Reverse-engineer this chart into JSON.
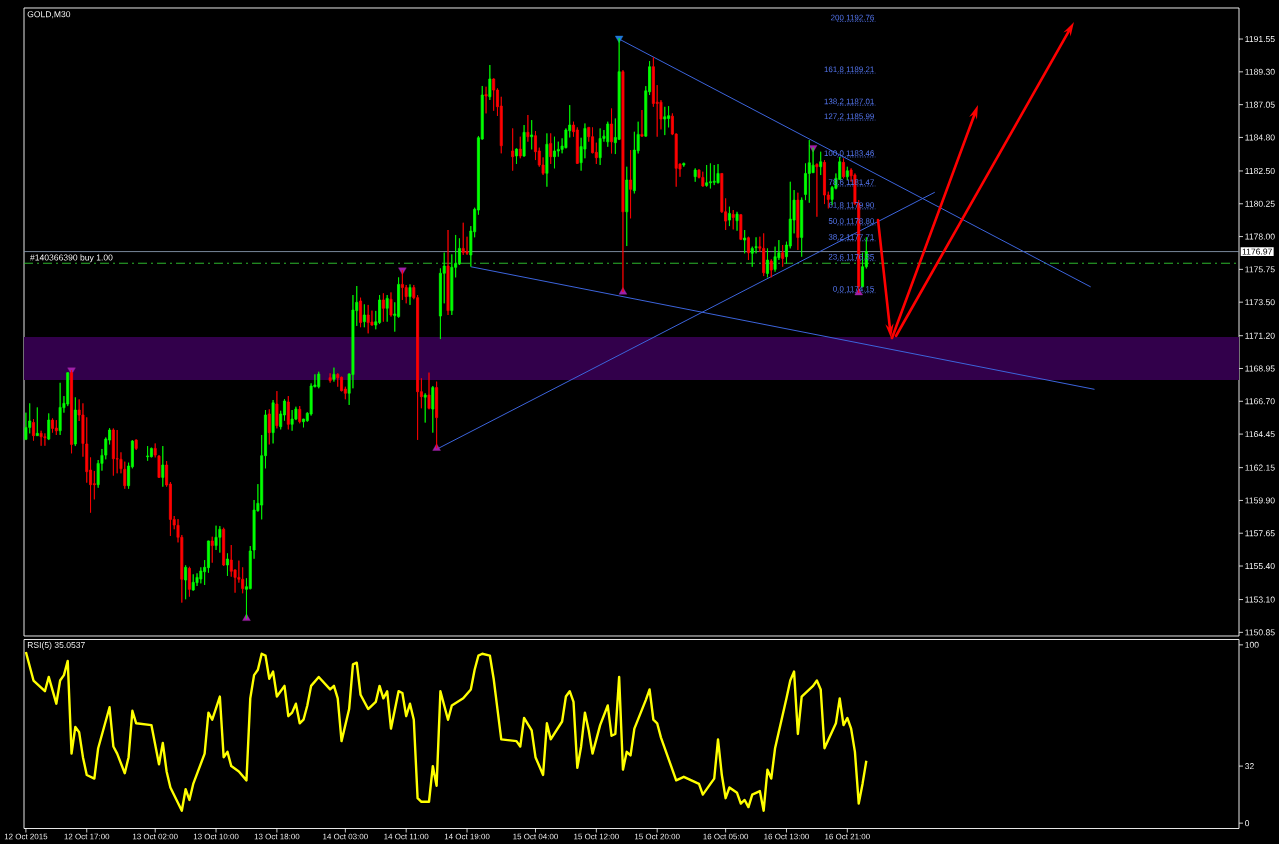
{
  "chart_data": [
    {
      "type": "candlestick",
      "title": "GOLD,M30",
      "x": [
        "2015-10-12T09:00",
        "2015-10-12T09:30",
        "2015-10-12T10:00",
        "2015-10-12T10:30",
        "2015-10-12T11:00",
        "2015-10-12T11:30",
        "2015-10-12T12:00",
        "2015-10-12T12:30",
        "2015-10-12T13:00",
        "2015-10-12T13:30",
        "2015-10-12T14:00",
        "2015-10-12T14:30",
        "2015-10-12T15:00",
        "2015-10-12T15:30",
        "2015-10-12T16:00",
        "2015-10-12T16:30",
        "2015-10-12T17:00",
        "2015-10-12T17:30",
        "2015-10-12T18:00",
        "2015-10-12T18:30",
        "2015-10-12T19:00",
        "2015-10-12T19:30",
        "2015-10-12T20:00",
        "2015-10-12T20:30",
        "2015-10-12T21:00",
        "2015-10-12T21:30",
        "2015-10-12T22:00",
        "2015-10-12T22:30",
        "2015-10-12T23:00",
        "2015-10-12T23:30",
        "2015-10-13T01:00",
        "2015-10-13T01:30",
        "2015-10-13T02:00",
        "2015-10-13T02:30",
        "2015-10-13T03:00",
        "2015-10-13T03:30",
        "2015-10-13T04:00",
        "2015-10-13T04:30",
        "2015-10-13T05:00",
        "2015-10-13T05:30",
        "2015-10-13T06:00",
        "2015-10-13T06:30",
        "2015-10-13T07:00",
        "2015-10-13T07:30",
        "2015-10-13T08:00",
        "2015-10-13T08:30",
        "2015-10-13T09:00",
        "2015-10-13T09:30",
        "2015-10-13T10:00",
        "2015-10-13T10:30",
        "2015-10-13T11:00",
        "2015-10-13T11:30",
        "2015-10-13T12:00",
        "2015-10-13T12:30",
        "2015-10-13T13:00",
        "2015-10-13T13:30",
        "2015-10-13T14:00",
        "2015-10-13T14:30",
        "2015-10-13T15:00",
        "2015-10-13T15:30",
        "2015-10-13T16:00",
        "2015-10-13T16:30",
        "2015-10-13T17:00",
        "2015-10-13T17:30",
        "2015-10-13T18:00",
        "2015-10-13T18:30",
        "2015-10-13T19:00",
        "2015-10-13T19:30",
        "2015-10-13T20:00",
        "2015-10-13T20:30",
        "2015-10-13T21:00",
        "2015-10-13T21:30",
        "2015-10-13T22:00",
        "2015-10-13T22:30",
        "2015-10-13T23:00",
        "2015-10-13T23:30",
        "2015-10-14T01:00",
        "2015-10-14T01:30",
        "2015-10-14T02:00",
        "2015-10-14T02:30",
        "2015-10-14T03:00",
        "2015-10-14T03:30",
        "2015-10-14T04:00",
        "2015-10-14T04:30",
        "2015-10-14T05:00",
        "2015-10-14T05:30",
        "2015-10-14T06:00",
        "2015-10-14T06:30",
        "2015-10-14T07:00",
        "2015-10-14T07:30",
        "2015-10-14T08:00",
        "2015-10-14T08:30",
        "2015-10-14T09:00",
        "2015-10-14T09:30",
        "2015-10-14T10:00",
        "2015-10-14T10:30",
        "2015-10-14T11:00",
        "2015-10-14T11:30",
        "2015-10-14T12:00",
        "2015-10-14T12:30",
        "2015-10-14T13:00",
        "2015-10-14T13:30",
        "2015-10-14T14:00",
        "2015-10-14T14:30",
        "2015-10-14T15:00",
        "2015-10-14T15:30",
        "2015-10-14T16:00",
        "2015-10-14T16:30",
        "2015-10-14T17:00",
        "2015-10-14T17:30",
        "2015-10-14T18:00",
        "2015-10-14T18:30",
        "2015-10-14T19:00",
        "2015-10-14T19:30",
        "2015-10-14T20:00",
        "2015-10-14T20:30",
        "2015-10-14T21:00",
        "2015-10-14T21:30",
        "2015-10-14T22:00",
        "2015-10-14T22:30",
        "2015-10-14T23:00",
        "2015-10-14T23:30",
        "2015-10-15T01:00",
        "2015-10-15T01:30",
        "2015-10-15T02:00",
        "2015-10-15T02:30",
        "2015-10-15T03:00",
        "2015-10-15T03:30",
        "2015-10-15T04:00",
        "2015-10-15T04:30",
        "2015-10-15T05:00",
        "2015-10-15T05:30",
        "2015-10-15T06:00",
        "2015-10-15T06:30",
        "2015-10-15T07:00",
        "2015-10-15T07:30",
        "2015-10-15T08:00",
        "2015-10-15T08:30",
        "2015-10-15T09:00",
        "2015-10-15T09:30",
        "2015-10-15T10:00",
        "2015-10-15T10:30",
        "2015-10-15T11:00",
        "2015-10-15T11:30",
        "2015-10-15T12:00",
        "2015-10-15T12:30",
        "2015-10-15T13:00",
        "2015-10-15T13:30",
        "2015-10-15T14:00",
        "2015-10-15T14:30",
        "2015-10-15T15:00",
        "2015-10-15T15:30",
        "2015-10-15T16:00",
        "2015-10-15T16:30",
        "2015-10-15T17:00",
        "2015-10-15T17:30",
        "2015-10-15T18:00",
        "2015-10-15T18:30",
        "2015-10-15T19:00",
        "2015-10-15T19:30",
        "2015-10-15T20:00",
        "2015-10-15T20:30",
        "2015-10-15T21:00",
        "2015-10-15T21:30",
        "2015-10-15T22:00",
        "2015-10-15T22:30",
        "2015-10-15T23:00",
        "2015-10-15T23:30",
        "2015-10-16T01:00",
        "2015-10-16T01:30",
        "2015-10-16T02:00",
        "2015-10-16T02:30",
        "2015-10-16T03:00",
        "2015-10-16T03:30",
        "2015-10-16T04:00",
        "2015-10-16T04:30",
        "2015-10-16T05:00",
        "2015-10-16T05:30",
        "2015-10-16T06:00",
        "2015-10-16T06:30",
        "2015-10-16T07:00",
        "2015-10-16T07:30",
        "2015-10-16T08:00",
        "2015-10-16T08:30",
        "2015-10-16T09:00",
        "2015-10-16T09:30",
        "2015-10-16T10:00",
        "2015-10-16T10:30",
        "2015-10-16T11:00",
        "2015-10-16T11:30",
        "2015-10-16T12:00",
        "2015-10-16T12:30",
        "2015-10-16T13:00",
        "2015-10-16T13:30",
        "2015-10-16T14:00",
        "2015-10-16T14:30",
        "2015-10-16T15:00",
        "2015-10-16T15:30",
        "2015-10-16T16:00",
        "2015-10-16T16:30",
        "2015-10-16T17:00",
        "2015-10-16T17:30",
        "2015-10-16T18:00",
        "2015-10-16T18:30",
        "2015-10-16T19:00",
        "2015-10-16T19:30",
        "2015-10-16T20:00",
        "2015-10-16T20:30",
        "2015-10-16T21:00",
        "2015-10-16T21:30",
        "2015-10-16T22:00",
        "2015-10-16T22:30",
        "2015-10-16T23:00",
        "2015-10-16T23:30"
      ],
      "ohlc": [
        [
          1164.09,
          1165.92,
          1164.04,
          1164.91
        ],
        [
          1164.91,
          1166.56,
          1164.5,
          1165.35
        ],
        [
          1165.25,
          1165.48,
          1164.0,
          1164.34
        ],
        [
          1164.34,
          1166.28,
          1164.34,
          1164.5
        ],
        [
          1164.5,
          1164.68,
          1163.65,
          1164.27
        ],
        [
          1164.27,
          1164.5,
          1163.65,
          1164.2
        ],
        [
          1164.11,
          1165.87,
          1164.04,
          1165.41
        ],
        [
          1165.41,
          1165.53,
          1164.55,
          1164.84
        ],
        [
          1164.86,
          1165.41,
          1164.39,
          1164.68
        ],
        [
          1164.68,
          1167.97,
          1164.39,
          1166.28
        ],
        [
          1166.26,
          1167.06,
          1165.92,
          1166.56
        ],
        [
          1166.51,
          1168.7,
          1166.37,
          1168.66
        ],
        [
          1168.66,
          1168.84,
          1163.13,
          1163.74
        ],
        [
          1163.77,
          1166.97,
          1163.63,
          1166.1
        ],
        [
          1166.1,
          1166.83,
          1165.35,
          1165.76
        ],
        [
          1165.76,
          1166.56,
          1162.9,
          1163.81
        ],
        [
          1163.77,
          1165.6,
          1161.12,
          1161.87
        ],
        [
          1161.98,
          1162.85,
          1159.06,
          1160.98
        ],
        [
          1161.05,
          1161.92,
          1159.97,
          1160.98
        ],
        [
          1160.98,
          1162.67,
          1160.77,
          1162.44
        ],
        [
          1162.44,
          1163.43,
          1161.94,
          1162.99
        ],
        [
          1163.01,
          1164.22,
          1162.72,
          1164.11
        ],
        [
          1164.04,
          1164.86,
          1163.74,
          1164.73
        ],
        [
          1164.73,
          1164.84,
          1161.6,
          1162.76
        ],
        [
          1162.76,
          1164.73,
          1161.76,
          1162.74
        ],
        [
          1162.72,
          1163.2,
          1161.76,
          1162.08
        ],
        [
          1162.03,
          1162.56,
          1160.7,
          1160.91
        ],
        [
          1160.91,
          1162.49,
          1160.7,
          1162.26
        ],
        [
          1162.21,
          1164.04,
          1162.1,
          1163.97
        ],
        [
          1164.04,
          1164.09,
          1163.36,
          1163.47
        ],
        [
          1162.9,
          1163.63,
          1162.62,
          1162.95
        ],
        [
          1162.9,
          1163.52,
          1162.85,
          1163.47
        ],
        [
          1163.47,
          1163.81,
          1162.85,
          1163.01
        ],
        [
          1162.94,
          1163.01,
          1161.45,
          1161.48
        ],
        [
          1161.48,
          1163.63,
          1160.84,
          1162.33
        ],
        [
          1162.33,
          1162.6,
          1160.84,
          1160.96
        ],
        [
          1161.02,
          1161.16,
          1157.46,
          1158.6
        ],
        [
          1158.6,
          1158.83,
          1157.92,
          1158.21
        ],
        [
          1158.19,
          1158.62,
          1157.02,
          1157.37
        ],
        [
          1157.37,
          1157.53,
          1152.89,
          1154.49
        ],
        [
          1154.44,
          1155.45,
          1153.12,
          1155.31
        ],
        [
          1155.24,
          1155.35,
          1153.3,
          1153.8
        ],
        [
          1153.76,
          1154.83,
          1153.71,
          1154.28
        ],
        [
          1154.26,
          1154.9,
          1154.03,
          1154.62
        ],
        [
          1154.51,
          1155.31,
          1154.21,
          1155.06
        ],
        [
          1155.01,
          1155.81,
          1154.1,
          1155.31
        ],
        [
          1155.29,
          1157.14,
          1154.94,
          1157.12
        ],
        [
          1157.12,
          1157.41,
          1155.63,
          1156.8
        ],
        [
          1156.8,
          1158.17,
          1156.5,
          1157.37
        ],
        [
          1157.37,
          1158.14,
          1156.32,
          1157.92
        ],
        [
          1157.92,
          1158.03,
          1155.4,
          1155.47
        ],
        [
          1155.47,
          1156.27,
          1154.72,
          1155.88
        ],
        [
          1155.81,
          1156.84,
          1154.67,
          1155.04
        ],
        [
          1155.13,
          1155.17,
          1153.57,
          1154.62
        ],
        [
          1154.62,
          1155.77,
          1154.26,
          1154.49
        ],
        [
          1154.49,
          1155.31,
          1153.53,
          1153.85
        ],
        [
          1153.8,
          1154.56,
          1151.81,
          1153.98
        ],
        [
          1153.85,
          1156.77,
          1153.8,
          1156.43
        ],
        [
          1156.5,
          1159.93,
          1155.9,
          1159.24
        ],
        [
          1159.2,
          1161.02,
          1159.13,
          1159.7
        ],
        [
          1159.58,
          1164.39,
          1158.6,
          1162.97
        ],
        [
          1162.97,
          1166.1,
          1162.1,
          1165.76
        ],
        [
          1165.83,
          1166.15,
          1163.74,
          1164.55
        ],
        [
          1164.55,
          1166.79,
          1163.81,
          1166.6
        ],
        [
          1166.51,
          1167.4,
          1164.84,
          1165.03
        ],
        [
          1164.96,
          1166.05,
          1164.77,
          1165.83
        ],
        [
          1165.76,
          1166.85,
          1165.37,
          1166.72
        ],
        [
          1166.65,
          1167.06,
          1164.77,
          1165.12
        ],
        [
          1165.12,
          1166.1,
          1164.68,
          1165.48
        ],
        [
          1165.48,
          1166.33,
          1165.41,
          1166.17
        ],
        [
          1166.15,
          1166.37,
          1165.19,
          1165.3
        ],
        [
          1165.3,
          1165.5,
          1164.91,
          1165.48
        ],
        [
          1165.37,
          1165.95,
          1165.3,
          1165.88
        ],
        [
          1165.83,
          1167.93,
          1165.72,
          1167.75
        ],
        [
          1167.7,
          1168.55,
          1167.66,
          1167.82
        ],
        [
          1167.7,
          1168.73,
          1167.59,
          1168.57
        ],
        [
          1168.32,
          1168.62,
          1167.98,
          1168.12
        ],
        [
          1168.21,
          1169.01,
          1168.05,
          1168.55
        ],
        [
          1168.55,
          1168.62,
          1167.7,
          1168.32
        ],
        [
          1168.35,
          1168.39,
          1167.38,
          1167.43
        ],
        [
          1167.54,
          1167.7,
          1166.84,
          1167.25
        ],
        [
          1167.25,
          1168.62,
          1166.45,
          1168.57
        ],
        [
          1168.53,
          1173.99,
          1167.59,
          1172.96
        ],
        [
          1172.92,
          1174.61,
          1171.87,
          1173.49
        ],
        [
          1173.58,
          1173.81,
          1171.78,
          1172.1
        ],
        [
          1172.16,
          1173.35,
          1171.78,
          1172.62
        ],
        [
          1172.62,
          1173.31,
          1171.36,
          1172.1
        ],
        [
          1172.14,
          1172.92,
          1171.89,
          1171.93
        ],
        [
          1171.93,
          1172.9,
          1171.64,
          1172.16
        ],
        [
          1172.1,
          1173.99,
          1172.0,
          1173.65
        ],
        [
          1173.65,
          1174.11,
          1172.16,
          1173.08
        ],
        [
          1173.08,
          1173.99,
          1172.16,
          1173.76
        ],
        [
          1173.7,
          1174.17,
          1172.51,
          1172.62
        ],
        [
          1172.58,
          1173.49,
          1171.48,
          1172.69
        ],
        [
          1172.51,
          1175.2,
          1172.44,
          1174.72
        ],
        [
          1174.72,
          1175.7,
          1173.65,
          1174.5
        ],
        [
          1174.5,
          1174.68,
          1173.42,
          1173.88
        ],
        [
          1173.88,
          1174.72,
          1173.31,
          1174.5
        ],
        [
          1174.5,
          1174.68,
          1173.7,
          1173.81
        ],
        [
          1173.81,
          1173.99,
          1164.05,
          1167.36
        ],
        [
          1167.36,
          1168.28,
          1166.22,
          1167.02
        ],
        [
          1166.98,
          1167.25,
          1165.24,
          1167.13
        ],
        [
          1167.13,
          1168.67,
          1166.15,
          1166.22
        ],
        [
          1166.17,
          1167.75,
          1164.55,
          1167.64
        ],
        [
          1167.64,
          1168.05,
          1163.48,
          1165.58
        ],
        [
          1172.55,
          1175.82,
          1170.97,
          1175.48
        ],
        [
          1175.48,
          1176.9,
          1173.42,
          1175.98
        ],
        [
          1175.98,
          1178.45,
          1172.62,
          1172.92
        ],
        [
          1172.92,
          1176.78,
          1172.62,
          1175.89
        ],
        [
          1175.89,
          1178.11,
          1175.2,
          1176.16
        ],
        [
          1176.12,
          1177.88,
          1176.05,
          1177.19
        ],
        [
          1177.19,
          1178.95,
          1176.74,
          1176.9
        ],
        [
          1176.96,
          1177.99,
          1176.74,
          1176.85
        ],
        [
          1176.74,
          1178.72,
          1175.94,
          1178.38
        ],
        [
          1178.33,
          1179.98,
          1177.95,
          1179.87
        ],
        [
          1179.82,
          1184.9,
          1179.5,
          1184.78
        ],
        [
          1184.69,
          1188.33,
          1184.65,
          1187.71
        ],
        [
          1187.75,
          1188.28,
          1186.45,
          1187.64
        ],
        [
          1187.59,
          1189.77,
          1187.37,
          1188.81
        ],
        [
          1188.81,
          1188.85,
          1186.63,
          1188.05
        ],
        [
          1188.05,
          1188.17,
          1186.27,
          1186.91
        ],
        [
          1186.95,
          1187.59,
          1183.71,
          1184.23
        ],
        [
          1183.87,
          1185.42,
          1182.52,
          1183.48
        ],
        [
          1183.53,
          1184.05,
          1182.98,
          1184.0
        ],
        [
          1184.0,
          1184.85,
          1183.37,
          1183.53
        ],
        [
          1183.53,
          1185.65,
          1183.48,
          1185.15
        ],
        [
          1185.15,
          1186.34,
          1184.51,
          1184.85
        ],
        [
          1184.85,
          1185.99,
          1183.98,
          1184.97
        ],
        [
          1184.92,
          1185.24,
          1183.25,
          1183.82
        ],
        [
          1183.87,
          1184.1,
          1182.79,
          1182.91
        ],
        [
          1182.91,
          1183.43,
          1182.22,
          1182.34
        ],
        [
          1182.34,
          1185.08,
          1181.42,
          1184.33
        ],
        [
          1184.39,
          1185.08,
          1182.98,
          1183.48
        ],
        [
          1183.48,
          1184.85,
          1182.68,
          1183.87
        ],
        [
          1183.87,
          1184.51,
          1183.48,
          1183.98
        ],
        [
          1183.98,
          1184.74,
          1183.71,
          1184.21
        ],
        [
          1184.1,
          1185.42,
          1184.05,
          1185.31
        ],
        [
          1185.26,
          1187.02,
          1184.8,
          1185.65
        ],
        [
          1185.65,
          1185.88,
          1184.85,
          1185.19
        ],
        [
          1185.31,
          1185.49,
          1182.98,
          1183.02
        ],
        [
          1183.07,
          1184.78,
          1182.52,
          1184.17
        ],
        [
          1184.0,
          1185.76,
          1183.37,
          1185.42
        ],
        [
          1185.49,
          1185.52,
          1184.51,
          1184.85
        ],
        [
          1184.85,
          1185.49,
          1183.71,
          1183.75
        ],
        [
          1183.78,
          1184.44,
          1182.98,
          1183.41
        ],
        [
          1183.41,
          1185.42,
          1182.91,
          1184.73
        ],
        [
          1184.73,
          1185.31,
          1184.51,
          1184.89
        ],
        [
          1184.5,
          1185.88,
          1184.16,
          1185.72
        ],
        [
          1185.72,
          1186.79,
          1183.7,
          1184.5
        ],
        [
          1184.44,
          1186.1,
          1183.66,
          1184.8
        ],
        [
          1184.67,
          1191.6,
          1184.62,
          1189.31
        ],
        [
          1189.31,
          1189.42,
          1174.2,
          1179.7
        ],
        [
          1179.7,
          1182.79,
          1177.35,
          1181.88
        ],
        [
          1181.88,
          1183.93,
          1179.25,
          1181.24
        ],
        [
          1181.15,
          1185.19,
          1180.96,
          1183.93
        ],
        [
          1183.89,
          1185.88,
          1183.7,
          1185.01
        ],
        [
          1185.01,
          1186.68,
          1184.85,
          1184.89
        ],
        [
          1184.89,
          1188.32,
          1184.85,
          1188.0
        ],
        [
          1187.93,
          1190.04,
          1187.71,
          1189.65
        ],
        [
          1189.65,
          1190.29,
          1186.9,
          1187.13
        ],
        [
          1187.22,
          1188.39,
          1184.85,
          1187.13
        ],
        [
          1187.22,
          1187.36,
          1185.35,
          1186.06
        ],
        [
          1186.06,
          1186.9,
          1184.96,
          1186.22
        ],
        [
          1186.1,
          1186.95,
          1185.49,
          1186.29
        ],
        [
          1186.26,
          1186.45,
          1184.96,
          1185.03
        ],
        [
          1185.03,
          1185.08,
          1181.42,
          1182.68
        ],
        [
          1182.97,
          1183.02,
          1182.1,
          1182.63
        ],
        [
          1182.91,
          1183.07,
          1182.79,
          1183.02
        ],
        [
          1182.11,
          1182.68,
          1181.76,
          1182.56
        ],
        [
          1182.56,
          1182.61,
          1181.99,
          1182.06
        ],
        [
          1182.06,
          1182.45,
          1181.42,
          1181.47
        ],
        [
          1181.51,
          1182.91,
          1181.42,
          1181.69
        ],
        [
          1181.69,
          1183.02,
          1181.3,
          1181.76
        ],
        [
          1181.72,
          1182.91,
          1181.53,
          1181.8
        ],
        [
          1181.69,
          1182.97,
          1181.65,
          1182.33
        ],
        [
          1182.33,
          1182.35,
          1179.63,
          1179.7
        ],
        [
          1179.7,
          1180.62,
          1178.45,
          1179.06
        ],
        [
          1179.13,
          1180.05,
          1178.72,
          1179.59
        ],
        [
          1179.52,
          1179.82,
          1178.49,
          1179.31
        ],
        [
          1179.09,
          1179.7,
          1178.4,
          1179.54
        ],
        [
          1179.5,
          1179.55,
          1177.76,
          1177.81
        ],
        [
          1177.76,
          1178.45,
          1176.85,
          1177.9
        ],
        [
          1177.92,
          1177.99,
          1176.39,
          1176.89
        ],
        [
          1176.85,
          1177.31,
          1175.93,
          1177.19
        ],
        [
          1177.24,
          1177.95,
          1176.85,
          1177.31
        ],
        [
          1177.31,
          1177.99,
          1176.96,
          1177.2
        ],
        [
          1177.19,
          1178.22,
          1175.29,
          1175.52
        ],
        [
          1175.47,
          1177.19,
          1175.2,
          1176.39
        ],
        [
          1176.32,
          1176.44,
          1175.2,
          1175.7
        ],
        [
          1175.75,
          1177.31,
          1175.59,
          1176.62
        ],
        [
          1176.55,
          1177.76,
          1176.39,
          1176.89
        ],
        [
          1176.89,
          1177.42,
          1175.93,
          1176.5
        ],
        [
          1176.62,
          1177.65,
          1176.16,
          1177.42
        ],
        [
          1177.35,
          1181.76,
          1177.19,
          1179.2
        ],
        [
          1179.13,
          1181.19,
          1178.22,
          1180.5
        ],
        [
          1180.5,
          1181.01,
          1177.08,
          1177.94
        ],
        [
          1177.94,
          1180.68,
          1176.62,
          1180.5
        ],
        [
          1180.89,
          1183.02,
          1180.5,
          1182.33
        ],
        [
          1182.33,
          1184.62,
          1180.32,
          1183.06
        ],
        [
          1182.38,
          1184.1,
          1182.38,
          1182.9
        ],
        [
          1182.95,
          1183.02,
          1179.36,
          1182.79
        ],
        [
          1182.79,
          1183.82,
          1182.22,
          1183.13
        ],
        [
          1183.09,
          1183.25,
          1180.23,
          1180.85
        ],
        [
          1180.85,
          1181.08,
          1179.93,
          1180.55
        ],
        [
          1180.55,
          1181.47,
          1180.16,
          1181.37
        ],
        [
          1181.31,
          1182.33,
          1181.24,
          1182.0
        ],
        [
          1181.92,
          1183.46,
          1181.88,
          1183.13
        ],
        [
          1183.09,
          1183.36,
          1181.99,
          1182.1
        ],
        [
          1182.1,
          1182.79,
          1181.88,
          1182.51
        ],
        [
          1182.56,
          1182.68,
          1181.76,
          1182.17
        ],
        [
          1182.22,
          1182.33,
          1180.16,
          1180.27
        ],
        [
          1180.27,
          1180.5,
          1174.15,
          1174.56
        ],
        [
          1174.56,
          1176.89,
          1174.52,
          1175.93
        ],
        [
          1175.93,
          1177.95,
          1175.81,
          1176.97
        ]
      ],
      "series": [
        {
          "type": "line",
          "x": [
            "2015-10-15T15:00",
            "2015-10-18T05:00"
          ],
          "values": [
            1191.55,
            1174.55
          ],
          "color": "#3c64dc"
        },
        {
          "type": "line",
          "x": [
            "2015-10-14T19:30",
            "2015-10-18T05:30"
          ],
          "values": [
            1175.93,
            1167.52
          ],
          "color": "#3c64dc"
        },
        {
          "type": "line",
          "x": [
            "2015-10-14T15:00",
            "2015-10-17T08:30"
          ],
          "values": [
            1163.41,
            1181.04
          ],
          "color": "#3c64dc"
        },
        {
          "type": "scatter",
          "x": [
            "2015-10-12T15:00",
            "2015-10-14T10:30",
            "2015-10-15T15:00",
            "2015-10-16T16:30"
          ],
          "values": [
            1168.84,
            1175.7,
            1191.6,
            1184.1
          ],
          "colors": [
            "#a020a8",
            "#a020a8",
            "#1e78d8",
            "#a020a8"
          ],
          "marker": "triangle"
        },
        {
          "type": "scatter",
          "x": [
            "2015-10-13T14:00",
            "2015-10-14T15:00",
            "2015-10-15T15:30",
            "2015-10-16T22:30"
          ],
          "values": [
            1151.81,
            1163.48,
            1174.2,
            1174.15
          ],
          "color": "#a020a8",
          "marker": "triangle"
        }
      ],
      "bands": [
        {
          "axis": "y",
          "from": 1168.16,
          "to": 1171.11,
          "color": "#32004b"
        }
      ],
      "ref_lines": [
        {
          "axis": "y",
          "value": 1176.97,
          "label": "1176.97",
          "color": "#8796ad"
        },
        {
          "axis": "y",
          "value": 1176.17,
          "label": "#140366390 buy 1.00",
          "color": "#32cd32",
          "line_style": "dashed"
        },
        {
          "axis": "y",
          "value": 1192.76,
          "label": "200 1192.76",
          "color": "#5577f2",
          "line_style": "dotted"
        },
        {
          "axis": "y",
          "value": 1189.21,
          "label": "161.8 1189.21",
          "color": "#5577f2",
          "line_style": "dotted"
        },
        {
          "axis": "y",
          "value": 1187.01,
          "label": "138.2 1187.01",
          "color": "#5577f2",
          "line_style": "dotted"
        },
        {
          "axis": "y",
          "value": 1185.99,
          "label": "127.2 1185.99",
          "color": "#5577f2",
          "line_style": "dotted"
        },
        {
          "axis": "y",
          "value": 1183.46,
          "label": "100.0 1183.46",
          "color": "#5577f2",
          "line_style": "dotted"
        },
        {
          "axis": "y",
          "value": 1181.47,
          "label": "78.6 1181.47",
          "color": "#5577f2",
          "line_style": "dotted"
        },
        {
          "axis": "y",
          "value": 1179.9,
          "label": "61.8 1179.90",
          "color": "#5577f2",
          "line_style": "dotted"
        },
        {
          "axis": "y",
          "value": 1178.8,
          "label": "50.0 1178.80",
          "color": "#5577f2",
          "line_style": "dotted"
        },
        {
          "axis": "y",
          "value": 1177.71,
          "label": "38.2 1177.71",
          "color": "#5577f2",
          "line_style": "dotted"
        },
        {
          "axis": "y",
          "value": 1176.35,
          "label": "23.6 1176.35",
          "color": "#5577f2",
          "line_style": "dotted"
        },
        {
          "axis": "y",
          "value": 1174.15,
          "label": "0.0 1174.15",
          "color": "#5577f2",
          "line_style": "dotted"
        }
      ],
      "xlim": [
        "2015-10-12T08:45",
        "2015-10-19T00:30"
      ],
      "ylim": [
        1150.6,
        1193.68
      ],
      "yticks": [
        1150.85,
        {
          "value": 1153.1,
          "label": "1153.10"
        },
        {
          "value": 1155.4,
          "label": "1155.40"
        },
        1157.65,
        {
          "value": 1159.9,
          "label": "1159.90"
        },
        1162.15,
        1164.45,
        {
          "value": 1166.7,
          "label": "1166.70"
        },
        1168.95,
        {
          "value": 1171.2,
          "label": "1171.20"
        },
        {
          "value": 1173.5,
          "label": "1173.50"
        },
        1175.75,
        {
          "value": 1178.0,
          "label": "1178.00"
        },
        1180.25,
        {
          "value": 1182.5,
          "label": "1182.50"
        },
        {
          "value": 1184.8,
          "label": "1184.80"
        },
        1187.05,
        {
          "value": 1189.3,
          "label": "1189.30"
        },
        1191.55
      ],
      "tick_labels": "y"
    },
    {
      "type": "line",
      "title": "RSI(5) 35.0537",
      "x": [
        "2015-10-12T09:00",
        "2015-10-12T10:00",
        "2015-10-12T11:30",
        "2015-10-12T12:00",
        "2015-10-12T13:00",
        "2015-10-12T13:30",
        "2015-10-12T14:00",
        "2015-10-12T14:30",
        "2015-10-12T15:00",
        "2015-10-12T15:30",
        "2015-10-12T16:00",
        "2015-10-12T16:30",
        "2015-10-12T17:00",
        "2015-10-12T18:00",
        "2015-10-12T18:30",
        "2015-10-12T20:00",
        "2015-10-12T20:30",
        "2015-10-12T21:00",
        "2015-10-12T22:00",
        "2015-10-12T22:30",
        "2015-10-12T23:00",
        "2015-10-12T23:30",
        "2015-10-13T01:30",
        "2015-10-13T02:30",
        "2015-10-13T03:00",
        "2015-10-13T03:30",
        "2015-10-13T04:00",
        "2015-10-13T05:30",
        "2015-10-13T06:00",
        "2015-10-13T06:30",
        "2015-10-13T07:00",
        "2015-10-13T08:30",
        "2015-10-13T09:00",
        "2015-10-13T09:30",
        "2015-10-13T10:30",
        "2015-10-13T11:00",
        "2015-10-13T11:30",
        "2015-10-13T12:00",
        "2015-10-13T13:00",
        "2015-10-13T14:00",
        "2015-10-13T14:30",
        "2015-10-13T15:00",
        "2015-10-13T15:30",
        "2015-10-13T16:00",
        "2015-10-13T16:30",
        "2015-10-13T17:00",
        "2015-10-13T17:30",
        "2015-10-13T18:00",
        "2015-10-13T19:00",
        "2015-10-13T19:30",
        "2015-10-13T20:00",
        "2015-10-13T20:30",
        "2015-10-13T21:00",
        "2015-10-13T21:30",
        "2015-10-13T22:00",
        "2015-10-13T22:30",
        "2015-10-13T23:30",
        "2015-10-14T01:00",
        "2015-10-14T01:30",
        "2015-10-14T02:00",
        "2015-10-14T02:30",
        "2015-10-14T03:30",
        "2015-10-14T04:00",
        "2015-10-14T04:30",
        "2015-10-14T05:00",
        "2015-10-14T06:00",
        "2015-10-14T07:00",
        "2015-10-14T07:30",
        "2015-10-14T08:00",
        "2015-10-14T08:30",
        "2015-10-14T09:00",
        "2015-10-14T10:00",
        "2015-10-14T10:30",
        "2015-10-14T11:00",
        "2015-10-14T11:30",
        "2015-10-14T12:00",
        "2015-10-14T12:30",
        "2015-10-14T13:00",
        "2015-10-14T14:00",
        "2015-10-14T14:30",
        "2015-10-14T15:00",
        "2015-10-14T15:30",
        "2015-10-14T16:30",
        "2015-10-14T17:00",
        "2015-10-14T18:30",
        "2015-10-14T19:30",
        "2015-10-14T20:00",
        "2015-10-14T20:30",
        "2015-10-14T21:00",
        "2015-10-14T22:00",
        "2015-10-14T22:30",
        "2015-10-14T23:00",
        "2015-10-14T23:30",
        "2015-10-15T01:30",
        "2015-10-15T02:00",
        "2015-10-15T02:30",
        "2015-10-15T03:30",
        "2015-10-15T04:00",
        "2015-10-15T05:00",
        "2015-10-15T05:30",
        "2015-10-15T06:00",
        "2015-10-15T07:30",
        "2015-10-15T08:00",
        "2015-10-15T08:30",
        "2015-10-15T09:00",
        "2015-10-15T09:30",
        "2015-10-15T10:00",
        "2015-10-15T10:30",
        "2015-10-15T11:00",
        "2015-10-15T11:30",
        "2015-10-15T12:30",
        "2015-10-15T13:30",
        "2015-10-15T14:00",
        "2015-10-15T14:30",
        "2015-10-15T15:00",
        "2015-10-15T15:30",
        "2015-10-15T16:00",
        "2015-10-15T16:30",
        "2015-10-15T17:00",
        "2015-10-15T18:30",
        "2015-10-15T19:00",
        "2015-10-15T19:30",
        "2015-10-15T20:00",
        "2015-10-15T20:30",
        "2015-10-15T22:30",
        "2015-10-15T23:30",
        "2015-10-16T01:30",
        "2015-10-16T02:00",
        "2015-10-16T03:00",
        "2015-10-16T03:30",
        "2015-10-16T04:00",
        "2015-10-16T04:30",
        "2015-10-16T05:00",
        "2015-10-16T05:30",
        "2015-10-16T06:30",
        "2015-10-16T07:00",
        "2015-10-16T07:30",
        "2015-10-16T08:00",
        "2015-10-16T08:30",
        "2015-10-16T09:30",
        "2015-10-16T10:00",
        "2015-10-16T10:30",
        "2015-10-16T11:00",
        "2015-10-16T11:30",
        "2015-10-16T13:00",
        "2015-10-16T13:30",
        "2015-10-16T14:00",
        "2015-10-16T14:30",
        "2015-10-16T15:00",
        "2015-10-16T16:30",
        "2015-10-16T17:00",
        "2015-10-16T17:30",
        "2015-10-16T18:00",
        "2015-10-16T19:30",
        "2015-10-16T20:00",
        "2015-10-16T20:30",
        "2015-10-16T21:00",
        "2015-10-16T21:30",
        "2015-10-16T22:00",
        "2015-10-16T22:30",
        "2015-10-16T23:00",
        "2015-10-16T23:30"
      ],
      "values": [
        96,
        80,
        74,
        82,
        67,
        80,
        83,
        91,
        39,
        54,
        51,
        37,
        27,
        25,
        42,
        65,
        43,
        39,
        28,
        37,
        63,
        56,
        55,
        33,
        45,
        29,
        20,
        7,
        19,
        13,
        22,
        39,
        62,
        58,
        71,
        37,
        40,
        32,
        29,
        24,
        70,
        83,
        86,
        95,
        94,
        81,
        85,
        71,
        77,
        60,
        62,
        67,
        56,
        58,
        66,
        77,
        82,
        75,
        77,
        70,
        46,
        64,
        89,
        90,
        72,
        64,
        68,
        77,
        70,
        74,
        53,
        74,
        73,
        60,
        67,
        58,
        14,
        12,
        12,
        32,
        21,
        74,
        58,
        66,
        70,
        75,
        86,
        94,
        95,
        94,
        81,
        64,
        47,
        46,
        43,
        59,
        52,
        37,
        27,
        56,
        47,
        57,
        71,
        74,
        68,
        31,
        43,
        62,
        52,
        39,
        55,
        66,
        49,
        50,
        82,
        30,
        40,
        38,
        53,
        69,
        75,
        58,
        56,
        48,
        24,
        26,
        22,
        16,
        22,
        25,
        47,
        27,
        14,
        20,
        17,
        11,
        13,
        9,
        16,
        18,
        7,
        30,
        25,
        42,
        70,
        80,
        85,
        50,
        71,
        77,
        80,
        75,
        42,
        56,
        70,
        55,
        59,
        53,
        40,
        11,
        22,
        35
      ],
      "color": "#ffff00",
      "xlim": [
        "2015-10-12T08:45",
        "2015-10-19T00:30"
      ],
      "xticks": [
        {
          "value": "2015-10-12T09:00",
          "label": "12 Oct 2015"
        },
        {
          "value": "2015-10-12T17:00",
          "label": "12 Oct 17:00"
        },
        {
          "value": "2015-10-13T02:00",
          "label": "13 Oct 02:00"
        },
        {
          "value": "2015-10-13T10:00",
          "label": "13 Oct 10:00"
        },
        {
          "value": "2015-10-13T18:00",
          "label": "13 Oct 18:00"
        },
        {
          "value": "2015-10-14T03:00",
          "label": "14 Oct 03:00"
        },
        {
          "value": "2015-10-14T11:00",
          "label": "14 Oct 11:00"
        },
        {
          "value": "2015-10-14T19:00",
          "label": "14 Oct 19:00"
        },
        {
          "value": "2015-10-15T04:00",
          "label": "15 Oct 04:00"
        },
        {
          "value": "2015-10-15T12:00",
          "label": "15 Oct 12:00"
        },
        {
          "value": "2015-10-15T20:00",
          "label": "15 Oct 20:00"
        },
        {
          "value": "2015-10-16T05:00",
          "label": "16 Oct 05:00"
        },
        {
          "value": "2015-10-16T13:00",
          "label": "16 Oct 13:00"
        },
        {
          "value": "2015-10-16T21:00",
          "label": "16 Oct 21:00"
        }
      ],
      "ylim": [
        -3,
        103
      ],
      "yticks": [
        0,
        32,
        100
      ]
    }
  ]
}
